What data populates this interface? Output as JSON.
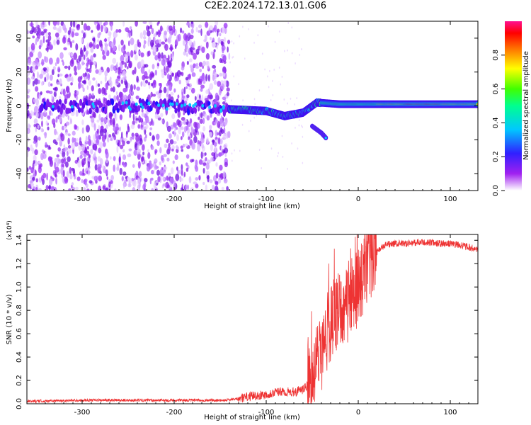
{
  "title": "C2E2.2024.172.13.01.G06",
  "chart_data": [
    {
      "type": "heatmap",
      "xlabel": "Height of straight line (km)",
      "ylabel": "Frequency (Hz)",
      "xlim": [
        -360,
        130
      ],
      "ylim": [
        -50,
        50
      ],
      "xticks": [
        -300,
        -200,
        -100,
        0,
        100
      ],
      "yticks": [
        -40,
        -20,
        0,
        20,
        40
      ],
      "colorbar": {
        "label": "Normalized spectral amplitude",
        "range": [
          0,
          1
        ],
        "ticks": [
          "0.0",
          "0.2",
          "0.4",
          "0.6",
          "0.8"
        ]
      },
      "features": {
        "noise_region_x": [
          -360,
          -140
        ],
        "signal_center_trace": [
          {
            "x": -340,
            "f": 0
          },
          {
            "x": -200,
            "f": 0
          },
          {
            "x": -140,
            "f": -2
          },
          {
            "x": -100,
            "f": -3
          },
          {
            "x": -80,
            "f": -6
          },
          {
            "x": -60,
            "f": -4
          },
          {
            "x": -45,
            "f": 2
          },
          {
            "x": -20,
            "f": 1
          },
          {
            "x": 0,
            "f": 1
          },
          {
            "x": 50,
            "f": 1
          },
          {
            "x": 130,
            "f": 1
          }
        ],
        "branch_trace": [
          {
            "x": -50,
            "f": -12
          },
          {
            "x": -40,
            "f": -16
          },
          {
            "x": -35,
            "f": -19
          }
        ]
      }
    },
    {
      "type": "line",
      "xlabel": "Height of straight line (km)",
      "ylabel": "SNR (10 * v/v)",
      "yscale_label": "(x10⁴)",
      "xlim": [
        -360,
        130
      ],
      "ylim": [
        0,
        1.45
      ],
      "xticks": [
        -300,
        -200,
        -100,
        0,
        100
      ],
      "yticks": [
        "0.0",
        "0.2",
        "0.4",
        "0.6",
        "0.8",
        "1.0",
        "1.2",
        "1.4"
      ],
      "series": [
        {
          "name": "SNR",
          "color": "#ee3333",
          "x": [
            -360,
            -300,
            -250,
            -200,
            -150,
            -130,
            -120,
            -110,
            -100,
            -90,
            -80,
            -70,
            -60,
            -50,
            -45,
            -40,
            -35,
            -30,
            -25,
            -20,
            -15,
            -10,
            -5,
            0,
            5,
            10,
            15,
            20,
            25,
            30,
            40,
            50,
            60,
            70,
            80,
            90,
            100,
            110,
            120,
            130
          ],
          "values": [
            0.02,
            0.03,
            0.03,
            0.03,
            0.03,
            0.04,
            0.06,
            0.07,
            0.08,
            0.1,
            0.1,
            0.1,
            0.12,
            0.2,
            0.35,
            0.45,
            0.6,
            0.7,
            0.75,
            0.85,
            0.8,
            0.9,
            0.95,
            1.0,
            1.1,
            1.2,
            1.27,
            1.3,
            1.33,
            1.36,
            1.37,
            1.37,
            1.38,
            1.38,
            1.38,
            1.37,
            1.37,
            1.36,
            1.34,
            1.32
          ]
        }
      ]
    }
  ]
}
